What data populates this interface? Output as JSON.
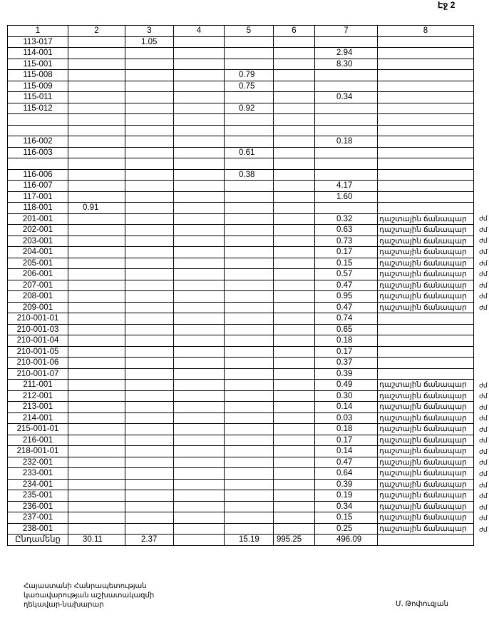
{
  "page_label": "Էջ 2",
  "table": {
    "headers": [
      "1",
      "2",
      "3",
      "4",
      "5",
      "6",
      "7",
      "8"
    ],
    "rows": [
      [
        "113-017",
        "",
        "1.05",
        "",
        "",
        "",
        "",
        ""
      ],
      [
        "114-001",
        "",
        "",
        "",
        "",
        "",
        "2.94",
        ""
      ],
      [
        "115-001",
        "",
        "",
        "",
        "",
        "",
        "8.30",
        ""
      ],
      [
        "115-008",
        "",
        "",
        "",
        "0.79",
        "",
        "",
        ""
      ],
      [
        "115-009",
        "",
        "",
        "",
        "0.75",
        "",
        "",
        ""
      ],
      [
        "115-011",
        "",
        "",
        "",
        "",
        "",
        "0.34",
        ""
      ],
      [
        "115-012",
        "",
        "",
        "",
        "0.92",
        "",
        "",
        ""
      ],
      [
        "",
        "",
        "",
        "",
        "",
        "",
        "",
        ""
      ],
      [
        "",
        "",
        "",
        "",
        "",
        "",
        "",
        ""
      ],
      [
        "116-002",
        "",
        "",
        "",
        "",
        "",
        "0.18",
        ""
      ],
      [
        "116-003",
        "",
        "",
        "",
        "0.61",
        "",
        "",
        ""
      ],
      [
        "",
        "",
        "",
        "",
        "",
        "",
        "",
        ""
      ],
      [
        "116-006",
        "",
        "",
        "",
        "0.38",
        "",
        "",
        ""
      ],
      [
        "116-007",
        "",
        "",
        "",
        "",
        "",
        "4.17",
        ""
      ],
      [
        "117-001",
        "",
        "",
        "",
        "",
        "",
        "1.60",
        ""
      ],
      [
        "118-001",
        "0.91",
        "",
        "",
        "",
        "",
        "",
        ""
      ],
      [
        "201-001",
        "",
        "",
        "",
        "",
        "",
        "0.32",
        "դաշտային ճանապար"
      ],
      [
        "202-001",
        "",
        "",
        "",
        "",
        "",
        "0.63",
        "դաշտային ճանապար"
      ],
      [
        "203-001",
        "",
        "",
        "",
        "",
        "",
        "0.73",
        "դաշտային ճանապար"
      ],
      [
        "204-001",
        "",
        "",
        "",
        "",
        "",
        "0.17",
        "դաշտային ճանապար"
      ],
      [
        "205-001",
        "",
        "",
        "",
        "",
        "",
        "0.15",
        "դաշտային ճանապար"
      ],
      [
        "206-001",
        "",
        "",
        "",
        "",
        "",
        "0.57",
        "դաշտային ճանապար"
      ],
      [
        "207-001",
        "",
        "",
        "",
        "",
        "",
        "0.47",
        "դաշտային ճանապար"
      ],
      [
        "208-001",
        "",
        "",
        "",
        "",
        "",
        "0.95",
        "դաշտային ճանապար"
      ],
      [
        "209-001",
        "",
        "",
        "",
        "",
        "",
        "0.47",
        "դաշտային ճանապար"
      ],
      [
        "210-001-01",
        "",
        "",
        "",
        "",
        "",
        "0.74",
        ""
      ],
      [
        "210-001-03",
        "",
        "",
        "",
        "",
        "",
        "0.65",
        ""
      ],
      [
        "210-001-04",
        "",
        "",
        "",
        "",
        "",
        "0.18",
        ""
      ],
      [
        "210-001-05",
        "",
        "",
        "",
        "",
        "",
        "0.17",
        ""
      ],
      [
        "210-001-06",
        "",
        "",
        "",
        "",
        "",
        "0.37",
        ""
      ],
      [
        "210-001-07",
        "",
        "",
        "",
        "",
        "",
        "0.39",
        ""
      ],
      [
        "211-001",
        "",
        "",
        "",
        "",
        "",
        "0.49",
        "դաշտային ճանապար"
      ],
      [
        "212-001",
        "",
        "",
        "",
        "",
        "",
        "0.30",
        "դաշտային ճանապար"
      ],
      [
        "213-001",
        "",
        "",
        "",
        "",
        "",
        "0.14",
        "դաշտային ճանապար"
      ],
      [
        "214-001",
        "",
        "",
        "",
        "",
        "",
        "0.03",
        "դաշտային ճանապար"
      ],
      [
        "215-001-01",
        "",
        "",
        "",
        "",
        "",
        "0.18",
        "դաշտային ճանապար"
      ],
      [
        "216-001",
        "",
        "",
        "",
        "",
        "",
        "0.17",
        "դաշտային ճանապար"
      ],
      [
        "218-001-01",
        "",
        "",
        "",
        "",
        "",
        "0.14",
        "դաշտային ճանապար"
      ],
      [
        "232-001",
        "",
        "",
        "",
        "",
        "",
        "0.47",
        "դաշտային ճանապար"
      ],
      [
        "233-001",
        "",
        "",
        "",
        "",
        "",
        "0.64",
        "դաշտային ճանապար"
      ],
      [
        "234-001",
        "",
        "",
        "",
        "",
        "",
        "0.39",
        "դաշտային ճանապար"
      ],
      [
        "235-001",
        "",
        "",
        "",
        "",
        "",
        "0.19",
        "դաշտային ճանապար"
      ],
      [
        "236-001",
        "",
        "",
        "",
        "",
        "",
        "0.34",
        "դաշտային ճանապար"
      ],
      [
        "237-001",
        "",
        "",
        "",
        "",
        "",
        "0.15",
        "դաշտային ճանապար"
      ],
      [
        "238-001",
        "",
        "",
        "",
        "",
        "",
        "0.25",
        "դաշտային ճանապար"
      ]
    ],
    "total": [
      "Ընդամենը",
      "30.11",
      "2.37",
      "",
      "15.19",
      "995.25",
      "496.09",
      ""
    ],
    "side_mark": "ժմ"
  },
  "footer": {
    "position_lines": [
      "Հայաստանի Հանրապետության",
      "կառավարության աշխատակազմի",
      "ղեկավար-նախարար"
    ],
    "signatory": "Մ. Թոփուզյան"
  }
}
